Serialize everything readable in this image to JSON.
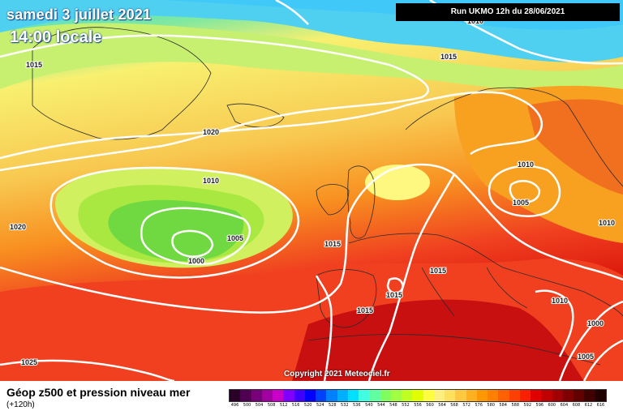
{
  "header": {
    "date": "samedi 3 juillet 2021",
    "time": "14:00 locale",
    "run": "Run UKMO 12h du 28/06/2021"
  },
  "map": {
    "copyright": "Copyright 2021 Meteociel.fr",
    "pressure_labels": [
      "1010",
      "1015",
      "1015",
      "1020",
      "1010",
      "1020",
      "1005",
      "1000",
      "1015",
      "1015",
      "1015",
      "1015",
      "1010",
      "1005",
      "1010",
      "1010",
      "1000",
      "1005",
      "1025"
    ],
    "colors": {
      "cyan": "#40d8f0",
      "green": "#60e040",
      "yellow": "#f8f070",
      "orange": "#f8a020",
      "red": "#f02020",
      "darkred": "#c00000"
    }
  },
  "footer": {
    "title": "Géop z500 et pression niveau mer",
    "subtitle": "(+120h)"
  },
  "scale": {
    "colors": [
      "#280028",
      "#500050",
      "#780078",
      "#a000a0",
      "#c800c8",
      "#8000ff",
      "#4000ff",
      "#0000ff",
      "#0040ff",
      "#0080ff",
      "#00b0ff",
      "#00e0ff",
      "#40ffe0",
      "#60ffa0",
      "#80ff60",
      "#a0ff40",
      "#c0ff20",
      "#e0ff00",
      "#ffff40",
      "#fff080",
      "#ffe060",
      "#ffc840",
      "#ffb020",
      "#ff9800",
      "#ff8000",
      "#ff6000",
      "#ff4000",
      "#f82000",
      "#e00000",
      "#c00000",
      "#a00000",
      "#800000",
      "#600000",
      "#400000",
      "#200000"
    ],
    "labels": [
      "496",
      "500",
      "504",
      "508",
      "512",
      "516",
      "520",
      "524",
      "528",
      "532",
      "536",
      "540",
      "544",
      "548",
      "552",
      "556",
      "560",
      "564",
      "568",
      "572",
      "576",
      "580",
      "584",
      "588",
      "592",
      "596",
      "600",
      "604",
      "608",
      "612",
      "616"
    ]
  }
}
